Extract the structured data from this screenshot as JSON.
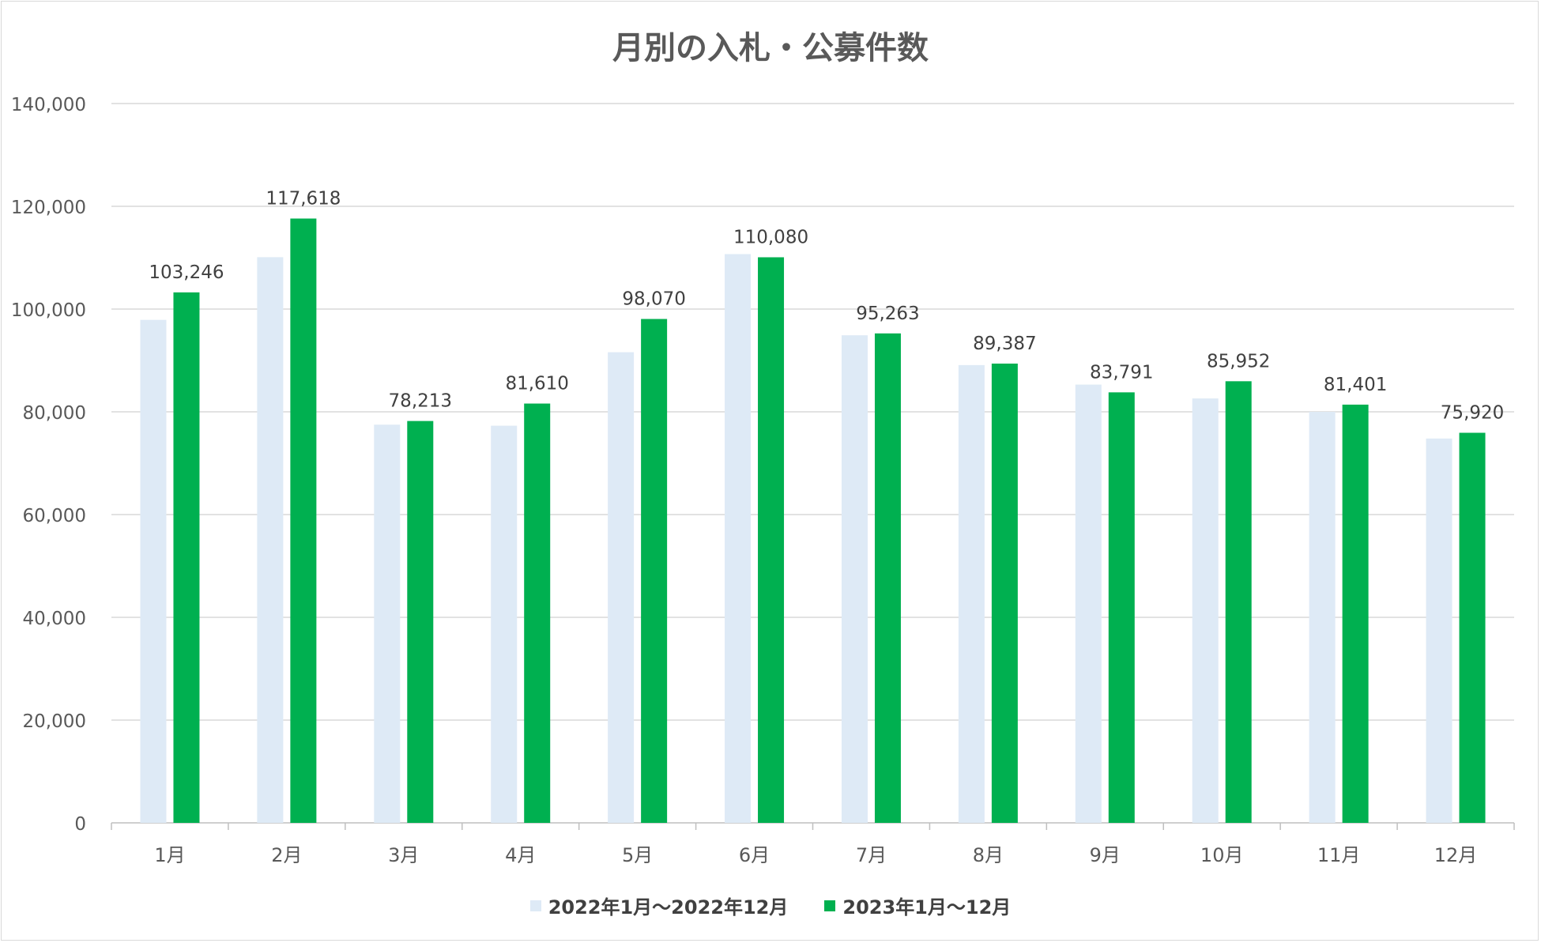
{
  "chart_data": {
    "type": "bar",
    "title": "月別の入札・公募件数",
    "categories": [
      "1月",
      "2月",
      "3月",
      "4月",
      "5月",
      "6月",
      "7月",
      "8月",
      "9月",
      "10月",
      "11月",
      "12月"
    ],
    "series": [
      {
        "name": "2022年1月～2022年12月",
        "color": "#deeaf6",
        "values": [
          97900,
          110100,
          77500,
          77300,
          91600,
          110700,
          94900,
          89100,
          85300,
          82600,
          80000,
          74800
        ],
        "show_labels": false
      },
      {
        "name": "2023年1月～12月",
        "color": "#00b050",
        "values": [
          103246,
          117618,
          78213,
          81610,
          98070,
          110080,
          95263,
          89387,
          83791,
          85952,
          81401,
          75920
        ],
        "show_labels": true
      }
    ],
    "data_labels": [
      "103,246",
      "117,618",
      "78,213",
      "81,610",
      "98,070",
      "110,080",
      "95,263",
      "89,387",
      "83,791",
      "85,952",
      "81,401",
      "75,920"
    ],
    "ylim": [
      0,
      140000
    ],
    "y_ticks": [
      0,
      20000,
      40000,
      60000,
      80000,
      100000,
      120000,
      140000
    ],
    "y_tick_labels": [
      "0",
      "20,000",
      "40,000",
      "60,000",
      "80,000",
      "100,000",
      "120,000",
      "140,000"
    ],
    "grid": true,
    "legend_position": "bottom",
    "xlabel": "",
    "ylabel": ""
  }
}
